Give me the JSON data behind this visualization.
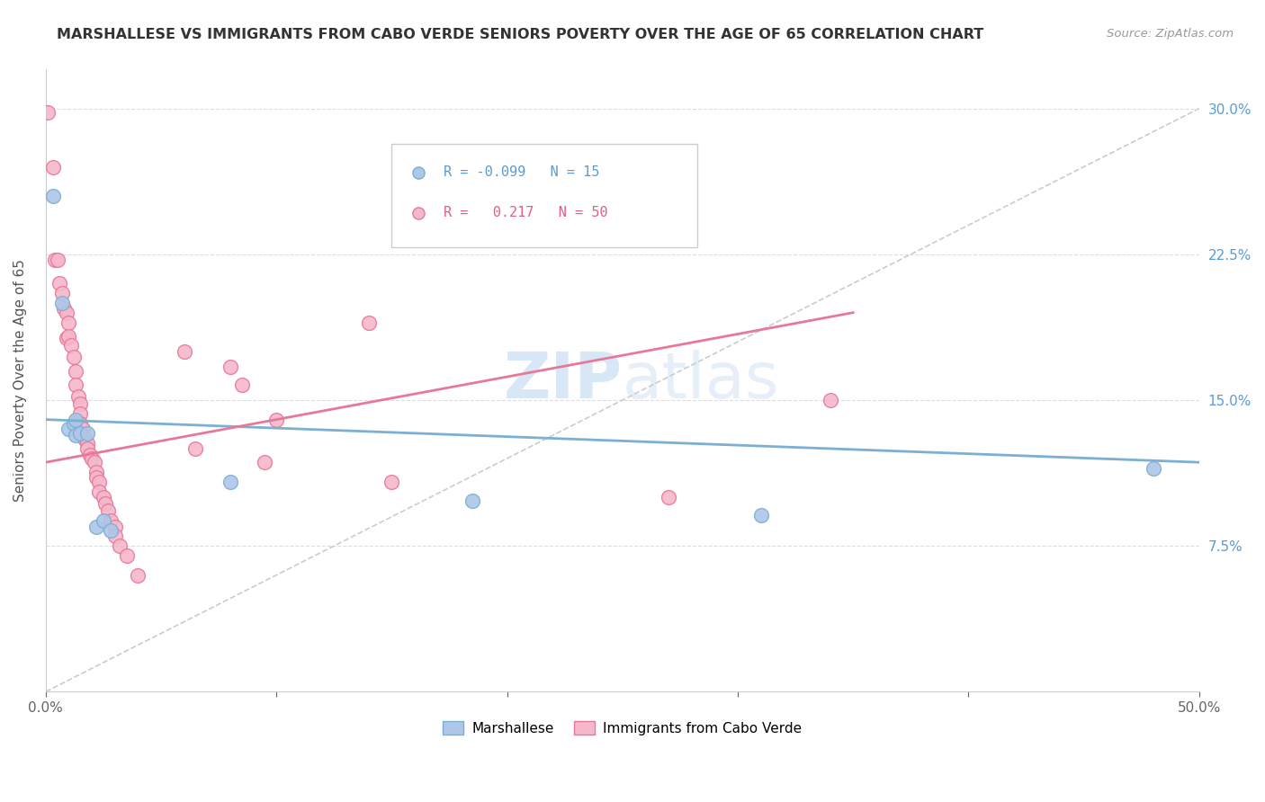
{
  "title": "MARSHALLESE VS IMMIGRANTS FROM CABO VERDE SENIORS POVERTY OVER THE AGE OF 65 CORRELATION CHART",
  "source": "Source: ZipAtlas.com",
  "ylabel": "Seniors Poverty Over the Age of 65",
  "xlim": [
    0.0,
    0.5
  ],
  "ylim": [
    0.0,
    0.32
  ],
  "xticks": [
    0.0,
    0.1,
    0.2,
    0.3,
    0.4,
    0.5
  ],
  "xticklabels": [
    "0.0%",
    "",
    "",
    "",
    "",
    "50.0%"
  ],
  "yticks": [
    0.075,
    0.15,
    0.225,
    0.3
  ],
  "yticklabels": [
    "7.5%",
    "15.0%",
    "22.5%",
    "30.0%"
  ],
  "blue_R": "-0.099",
  "blue_N": "15",
  "pink_R": "0.217",
  "pink_N": "50",
  "legend_label_blue": "Marshallese",
  "legend_label_pink": "Immigrants from Cabo Verde",
  "watermark_zip": "ZIP",
  "watermark_atlas": "atlas",
  "blue_color": "#aec6e8",
  "pink_color": "#f5b8ca",
  "blue_edge_color": "#7bafd4",
  "pink_edge_color": "#e8789a",
  "blue_line_color": "#7bafd4",
  "pink_line_color": "#e8789a",
  "dashed_line_color": "#cccccc",
  "blue_scatter": [
    [
      0.003,
      0.255
    ],
    [
      0.007,
      0.2
    ],
    [
      0.01,
      0.135
    ],
    [
      0.012,
      0.138
    ],
    [
      0.013,
      0.14
    ],
    [
      0.013,
      0.132
    ],
    [
      0.015,
      0.133
    ],
    [
      0.018,
      0.133
    ],
    [
      0.022,
      0.085
    ],
    [
      0.025,
      0.088
    ],
    [
      0.028,
      0.083
    ],
    [
      0.08,
      0.108
    ],
    [
      0.185,
      0.098
    ],
    [
      0.31,
      0.091
    ],
    [
      0.48,
      0.115
    ]
  ],
  "pink_scatter": [
    [
      0.001,
      0.298
    ],
    [
      0.003,
      0.27
    ],
    [
      0.004,
      0.222
    ],
    [
      0.005,
      0.222
    ],
    [
      0.006,
      0.21
    ],
    [
      0.007,
      0.205
    ],
    [
      0.008,
      0.197
    ],
    [
      0.009,
      0.195
    ],
    [
      0.009,
      0.182
    ],
    [
      0.01,
      0.19
    ],
    [
      0.01,
      0.183
    ],
    [
      0.011,
      0.178
    ],
    [
      0.012,
      0.172
    ],
    [
      0.013,
      0.165
    ],
    [
      0.013,
      0.158
    ],
    [
      0.014,
      0.152
    ],
    [
      0.015,
      0.148
    ],
    [
      0.015,
      0.143
    ],
    [
      0.015,
      0.138
    ],
    [
      0.016,
      0.135
    ],
    [
      0.016,
      0.132
    ],
    [
      0.017,
      0.13
    ],
    [
      0.018,
      0.128
    ],
    [
      0.018,
      0.125
    ],
    [
      0.019,
      0.122
    ],
    [
      0.02,
      0.12
    ],
    [
      0.021,
      0.118
    ],
    [
      0.022,
      0.113
    ],
    [
      0.022,
      0.11
    ],
    [
      0.023,
      0.108
    ],
    [
      0.023,
      0.103
    ],
    [
      0.025,
      0.1
    ],
    [
      0.026,
      0.097
    ],
    [
      0.027,
      0.093
    ],
    [
      0.028,
      0.088
    ],
    [
      0.03,
      0.085
    ],
    [
      0.03,
      0.08
    ],
    [
      0.032,
      0.075
    ],
    [
      0.035,
      0.07
    ],
    [
      0.04,
      0.06
    ],
    [
      0.06,
      0.175
    ],
    [
      0.065,
      0.125
    ],
    [
      0.08,
      0.167
    ],
    [
      0.085,
      0.158
    ],
    [
      0.095,
      0.118
    ],
    [
      0.1,
      0.14
    ],
    [
      0.14,
      0.19
    ],
    [
      0.15,
      0.108
    ],
    [
      0.27,
      0.1
    ],
    [
      0.34,
      0.15
    ]
  ],
  "blue_line_x0": 0.0,
  "blue_line_y0": 0.14,
  "blue_line_x1": 0.5,
  "blue_line_y1": 0.118,
  "pink_line_x0": 0.0,
  "pink_line_y0": 0.118,
  "pink_line_x1": 0.35,
  "pink_line_y1": 0.195
}
